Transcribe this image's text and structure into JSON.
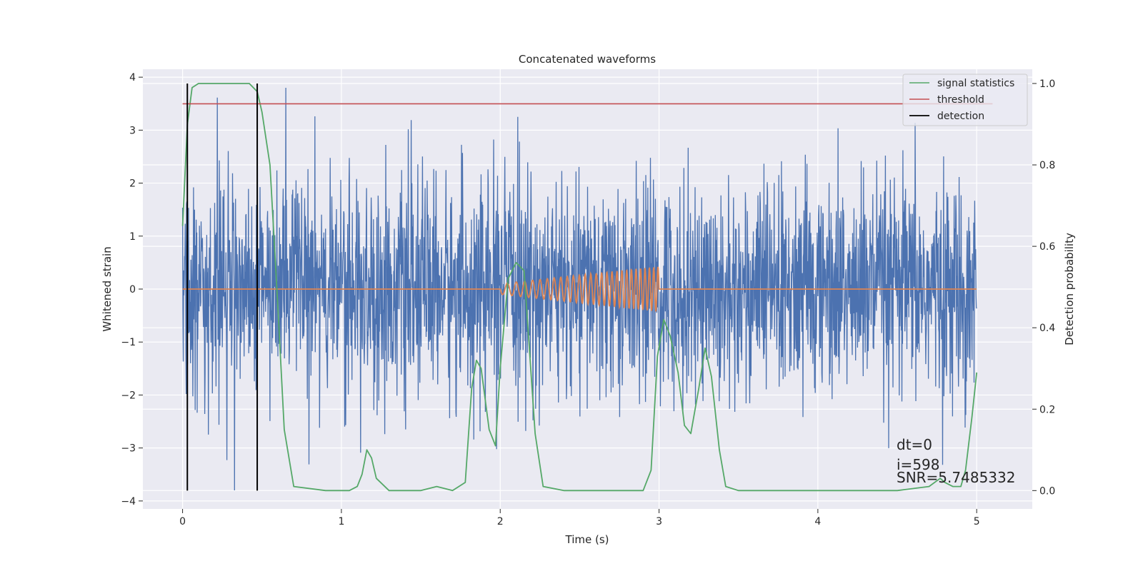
{
  "chart_data": {
    "type": "line",
    "title": "Concatenated waveforms",
    "xlabel": "Time (s)",
    "ylabel_left": "Whitened strain",
    "ylabel_right": "Detection probability",
    "xlim": [
      -0.25,
      5.35
    ],
    "ylim_left": [
      -4.15,
      4.15
    ],
    "ylim_right": [
      -0.045,
      1.035
    ],
    "x_ticks": [
      0,
      1,
      2,
      3,
      4,
      5
    ],
    "x_tick_labels": [
      "0",
      "1",
      "2",
      "3",
      "4",
      "5"
    ],
    "y_left_ticks": [
      -4,
      -3,
      -2,
      -1,
      0,
      1,
      2,
      3,
      4
    ],
    "y_left_tick_labels": [
      "−4",
      "−3",
      "−2",
      "−1",
      "0",
      "1",
      "2",
      "3",
      "4"
    ],
    "y_right_ticks": [
      0.0,
      0.2,
      0.4,
      0.6,
      0.8,
      1.0
    ],
    "y_right_tick_labels": [
      "0.0",
      "0.2",
      "0.4",
      "0.6",
      "0.8",
      "1.0"
    ],
    "grid": true,
    "legend_position": "top-right",
    "series": [
      {
        "name": "",
        "axis": "left",
        "color": "#4c72b0",
        "kind": "noise",
        "x_range": [
          0,
          5
        ],
        "std": 1.0,
        "max": 3.8,
        "min": -3.8
      },
      {
        "name": "",
        "axis": "left",
        "color": "#dd8452",
        "kind": "chirp",
        "x_range": [
          0,
          5
        ],
        "active_interval": [
          2.0,
          3.0
        ],
        "amplitude_start": 0.1,
        "amplitude_end": 0.43,
        "cycles": 27
      },
      {
        "name": "signal statistics",
        "axis": "right",
        "color": "#55a868",
        "x": [
          0,
          0.03,
          0.06,
          0.1,
          0.15,
          0.3,
          0.42,
          0.47,
          0.5,
          0.55,
          0.6,
          0.64,
          0.7,
          0.9,
          1.05,
          1.1,
          1.13,
          1.16,
          1.19,
          1.22,
          1.3,
          1.5,
          1.6,
          1.7,
          1.78,
          1.82,
          1.85,
          1.88,
          1.93,
          1.97,
          2.0,
          2.05,
          2.1,
          2.15,
          2.18,
          2.22,
          2.27,
          2.4,
          2.6,
          2.9,
          2.95,
          2.99,
          3.03,
          3.07,
          3.12,
          3.16,
          3.2,
          3.25,
          3.29,
          3.33,
          3.38,
          3.42,
          3.5,
          4.0,
          4.5,
          4.7,
          4.77,
          4.8,
          4.85,
          4.9,
          4.93,
          4.97,
          5.0
        ],
        "values": [
          0.65,
          0.9,
          0.99,
          1.0,
          1.0,
          1.0,
          1.0,
          0.98,
          0.93,
          0.8,
          0.45,
          0.15,
          0.01,
          0.0,
          0.0,
          0.01,
          0.04,
          0.1,
          0.08,
          0.03,
          0.0,
          0.0,
          0.01,
          0.0,
          0.02,
          0.25,
          0.32,
          0.3,
          0.15,
          0.11,
          0.3,
          0.52,
          0.56,
          0.54,
          0.37,
          0.14,
          0.01,
          0.0,
          0.0,
          0.0,
          0.05,
          0.33,
          0.42,
          0.38,
          0.29,
          0.16,
          0.14,
          0.25,
          0.35,
          0.28,
          0.1,
          0.01,
          0.0,
          0.0,
          0.0,
          0.01,
          0.03,
          0.02,
          0.01,
          0.01,
          0.05,
          0.18,
          0.29
        ]
      },
      {
        "name": "threshold",
        "axis": "right",
        "color": "#c44e52",
        "x": [
          0,
          5.1
        ],
        "values": [
          0.95,
          0.95
        ]
      },
      {
        "name": "detection",
        "axis": "right",
        "color": "#000000",
        "kind": "vlines",
        "x": [
          0.03,
          0.47
        ],
        "ymin": 0.0,
        "ymax": 1.0
      }
    ],
    "annotations": [
      "dt=0",
      "i=598",
      "SNR=5.7485332"
    ]
  }
}
